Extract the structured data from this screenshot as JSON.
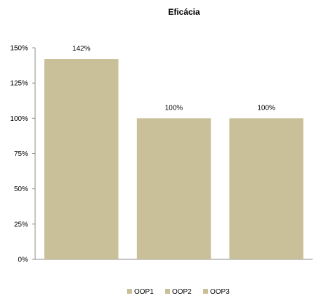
{
  "chart_data": {
    "type": "bar",
    "title": "Eficácia",
    "categories": [
      "OOP1",
      "OOP2",
      "OOP3"
    ],
    "values": [
      142,
      100,
      100
    ],
    "data_labels": [
      "142%",
      "100%",
      "100%"
    ],
    "ylim": [
      0,
      150
    ],
    "y_ticks": [
      0,
      25,
      50,
      75,
      100,
      125,
      150
    ],
    "y_tick_labels": [
      "0%",
      "25%",
      "50%",
      "75%",
      "100%",
      "125%",
      "150%"
    ],
    "xlabel": "",
    "ylabel": "",
    "grid": false,
    "legend": {
      "position": "bottom",
      "entries": [
        "OOP1",
        "OOP2",
        "OOP3"
      ]
    },
    "bar_color": "#c9bf98"
  }
}
